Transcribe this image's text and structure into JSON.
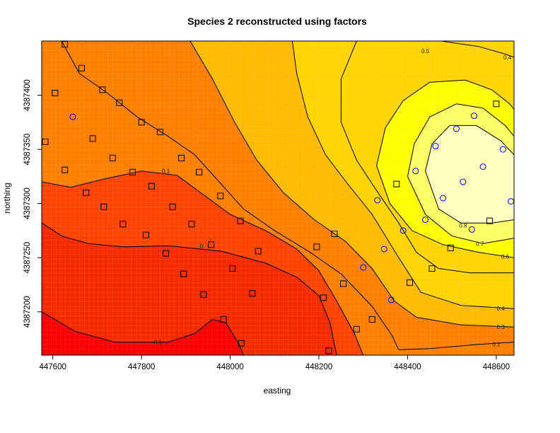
{
  "chart_data": {
    "type": "heatmap",
    "title": "Species 2 reconstructed using factors",
    "xlabel": "easting",
    "ylabel": "northing",
    "xlim": [
      447575,
      448640
    ],
    "ylim": [
      4387160,
      4387450
    ],
    "x_ticks": [
      447600,
      447800,
      448000,
      448200,
      448400,
      448600
    ],
    "y_ticks": [
      4387200,
      4387250,
      4387300,
      4387350,
      4387400
    ],
    "grid": false,
    "legend": "none",
    "color_scale": [
      "#ff0000",
      "#ff4400",
      "#ff8000",
      "#ffbb00",
      "#ffff00",
      "#ffffbf"
    ],
    "contour_levels": [
      {
        "value": "-0.1",
        "label_x": 447835,
        "label_y": 4387172,
        "points": [
          [
            447575,
            4387200
          ],
          [
            447650,
            4387182
          ],
          [
            447740,
            4387172
          ],
          [
            447860,
            4387172
          ],
          [
            447920,
            4387180
          ],
          [
            447960,
            4387193
          ],
          [
            447990,
            4387190
          ],
          [
            448020,
            4387170
          ],
          [
            448030,
            4387160
          ]
        ]
      },
      {
        "value": "0",
        "label_x": 447935,
        "label_y": 4387261,
        "points": [
          [
            447575,
            4387282
          ],
          [
            447620,
            4387270
          ],
          [
            447680,
            4387263
          ],
          [
            447760,
            4387260
          ],
          [
            447860,
            4387261
          ],
          [
            447980,
            4387256
          ],
          [
            448080,
            4387245
          ],
          [
            448150,
            4387232
          ],
          [
            448200,
            4387215
          ],
          [
            448225,
            4387190
          ],
          [
            448240,
            4387160
          ]
        ]
      },
      {
        "value": "0.1",
        "label_x": 447855,
        "label_y": 4387330,
        "points": [
          [
            447575,
            4387320
          ],
          [
            447640,
            4387315
          ],
          [
            447720,
            4387323
          ],
          [
            447800,
            4387330
          ],
          [
            447880,
            4387326
          ],
          [
            447940,
            4387308
          ],
          [
            448000,
            4387290
          ],
          [
            448080,
            4387275
          ],
          [
            448150,
            4387258
          ],
          [
            448200,
            4387238
          ],
          [
            448240,
            4387210
          ],
          [
            448280,
            4387180
          ],
          [
            448300,
            4387160
          ]
        ]
      },
      {
        "value": "0.2",
        "label_x": 448600,
        "label_y": 4387170,
        "points": [
          [
            447620,
            4387450
          ],
          [
            447660,
            4387420
          ],
          [
            447720,
            4387403
          ],
          [
            447790,
            4387380
          ],
          [
            447860,
            4387362
          ],
          [
            447920,
            4387345
          ],
          [
            447975,
            4387320
          ],
          [
            448030,
            4387295
          ],
          [
            448100,
            4387275
          ],
          [
            448180,
            4387255
          ],
          [
            448250,
            4387235
          ],
          [
            448320,
            4387205
          ],
          [
            448365,
            4387178
          ],
          [
            448380,
            4387165
          ],
          [
            448450,
            4387166
          ],
          [
            448560,
            4387170
          ],
          [
            448640,
            4387172
          ]
        ]
      },
      {
        "value": "0.3",
        "label_x": 448610,
        "label_y": 4387186,
        "points": [
          [
            447910,
            4387450
          ],
          [
            447960,
            4387415
          ],
          [
            448010,
            4387375
          ],
          [
            448060,
            4387340
          ],
          [
            448120,
            4387310
          ],
          [
            448190,
            4387285
          ],
          [
            448260,
            4387265
          ],
          [
            448320,
            4387240
          ],
          [
            448370,
            4387210
          ],
          [
            448420,
            4387195
          ],
          [
            448520,
            4387188
          ],
          [
            448640,
            4387186
          ]
        ]
      },
      {
        "value": "0.4",
        "label_x": 448610,
        "label_y": 4387203,
        "points": [
          [
            448140,
            4387450
          ],
          [
            448150,
            4387420
          ],
          [
            448175,
            4387380
          ],
          [
            448215,
            4387345
          ],
          [
            448265,
            4387318
          ],
          [
            448320,
            4387290
          ],
          [
            448380,
            4387250
          ],
          [
            448430,
            4387218
          ],
          [
            448520,
            4387206
          ],
          [
            448640,
            4387203
          ]
        ]
      },
      {
        "value": "0.5",
        "label_x": 448440,
        "label_y": 4387441,
        "points": [
          [
            448285,
            4387450
          ],
          [
            448250,
            4387415
          ],
          [
            448250,
            4387375
          ],
          [
            448285,
            4387340
          ],
          [
            448330,
            4387312
          ],
          [
            448380,
            4387282
          ],
          [
            448420,
            4387255
          ],
          [
            448470,
            4387240
          ],
          [
            448540,
            4387236
          ],
          [
            448640,
            4387236
          ]
        ]
      },
      {
        "value": "0.4",
        "label_x": 448625,
        "label_y": 4387435,
        "points": [
          [
            448475,
            4387450
          ],
          [
            448560,
            4387445
          ],
          [
            448620,
            4387438
          ],
          [
            448640,
            4387435
          ]
        ]
      },
      {
        "value": "0.6",
        "label_x": 448620,
        "label_y": 4387251,
        "points": [
          [
            448330,
            4387335
          ],
          [
            448350,
            4387370
          ],
          [
            448390,
            4387395
          ],
          [
            448450,
            4387412
          ],
          [
            448530,
            4387414
          ],
          [
            448590,
            4387405
          ],
          [
            448630,
            4387392
          ],
          [
            448640,
            4387387
          ],
          [
            448640,
            4387250
          ],
          [
            448560,
            4387255
          ],
          [
            448480,
            4387262
          ],
          [
            448410,
            4387275
          ],
          [
            448360,
            4387300
          ],
          [
            448330,
            4387335
          ]
        ]
      },
      {
        "value": "0.7",
        "label_x": 448563,
        "label_y": 4387263,
        "points": [
          [
            448400,
            4387325
          ],
          [
            448415,
            4387355
          ],
          [
            448450,
            4387380
          ],
          [
            448510,
            4387392
          ],
          [
            448570,
            4387388
          ],
          [
            448620,
            4387372
          ],
          [
            448640,
            4387362
          ],
          [
            448640,
            4387268
          ],
          [
            448570,
            4387263
          ],
          [
            448500,
            4387270
          ],
          [
            448440,
            4387290
          ],
          [
            448400,
            4387325
          ]
        ]
      },
      {
        "value": "0.8",
        "label_x": 448525,
        "label_y": 4387280,
        "points": [
          [
            448440,
            4387330
          ],
          [
            448455,
            4387355
          ],
          [
            448495,
            4387372
          ],
          [
            448555,
            4387372
          ],
          [
            448610,
            4387358
          ],
          [
            448640,
            4387345
          ],
          [
            448640,
            4387285
          ],
          [
            448590,
            4387282
          ],
          [
            448520,
            4387282
          ],
          [
            448470,
            4387295
          ],
          [
            448440,
            4387330
          ]
        ]
      }
    ],
    "markers": {
      "squares": [
        [
          447627,
          4387447
        ],
        [
          447665,
          4387425
        ],
        [
          447605,
          4387402
        ],
        [
          447712,
          4387405
        ],
        [
          447750,
          4387393
        ],
        [
          447800,
          4387375
        ],
        [
          447842,
          4387366
        ],
        [
          447690,
          4387360
        ],
        [
          447583,
          4387357
        ],
        [
          447735,
          4387342
        ],
        [
          447780,
          4387329
        ],
        [
          447890,
          4387342
        ],
        [
          447930,
          4387329
        ],
        [
          447627,
          4387331
        ],
        [
          447823,
          4387316
        ],
        [
          447675,
          4387310
        ],
        [
          447715,
          4387297
        ],
        [
          447870,
          4387297
        ],
        [
          447978,
          4387307
        ],
        [
          447758,
          4387281
        ],
        [
          447913,
          4387281
        ],
        [
          448023,
          4387284
        ],
        [
          447810,
          4387271
        ],
        [
          447957,
          4387262
        ],
        [
          448063,
          4387256
        ],
        [
          448195,
          4387260
        ],
        [
          448235,
          4387272
        ],
        [
          447855,
          4387254
        ],
        [
          448005,
          4387240
        ],
        [
          447895,
          4387235
        ],
        [
          448255,
          4387226
        ],
        [
          448050,
          4387217
        ],
        [
          448210,
          4387213
        ],
        [
          447940,
          4387216
        ],
        [
          447985,
          4387193
        ],
        [
          448320,
          4387193
        ],
        [
          448285,
          4387184
        ],
        [
          448025,
          4387171
        ],
        [
          448222,
          4387164
        ],
        [
          448375,
          4387318
        ],
        [
          448405,
          4387227
        ],
        [
          448455,
          4387240
        ],
        [
          448497,
          4387259
        ],
        [
          448585,
          4387284
        ],
        [
          448600,
          4387392
        ]
      ],
      "circles": [
        [
          447645,
          4387380
        ],
        [
          448332,
          4387303
        ],
        [
          448390,
          4387275
        ],
        [
          448347,
          4387258
        ],
        [
          448300,
          4387241
        ],
        [
          448363,
          4387211
        ],
        [
          448418,
          4387330
        ],
        [
          448440,
          4387285
        ],
        [
          448463,
          4387353
        ],
        [
          448480,
          4387305
        ],
        [
          448510,
          4387369
        ],
        [
          448525,
          4387320
        ],
        [
          448550,
          4387381
        ],
        [
          448570,
          4387334
        ],
        [
          448545,
          4387276
        ],
        [
          448615,
          4387350
        ],
        [
          448633,
          4387302
        ]
      ]
    }
  }
}
